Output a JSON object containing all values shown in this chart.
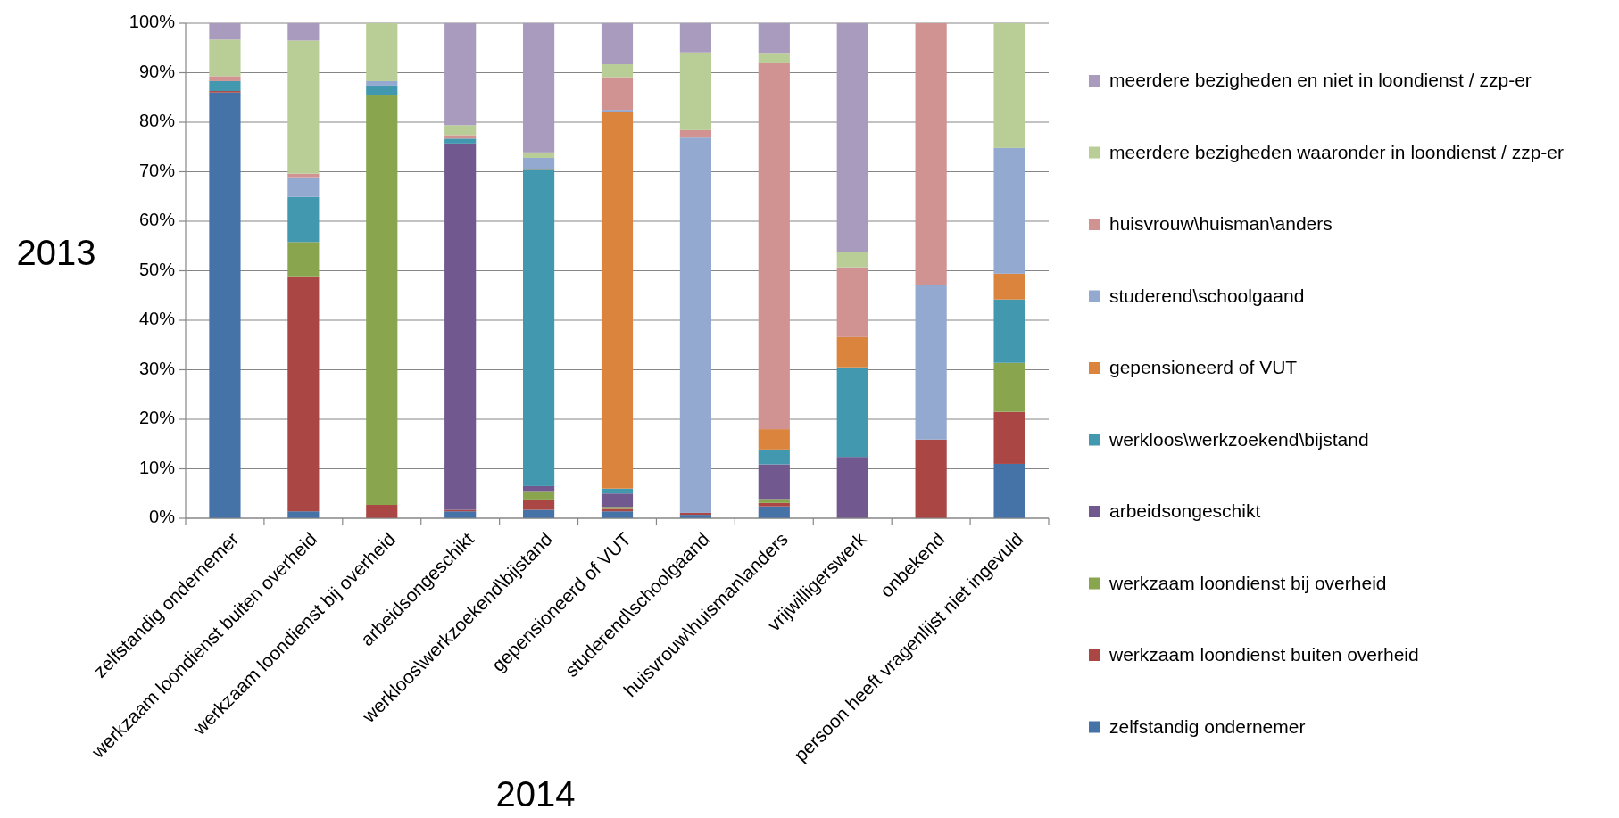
{
  "chart_data": {
    "type": "bar",
    "stacked": true,
    "ylabel": "2013",
    "xlabel": "2014",
    "categories": [
      "zelfstandig ondernemer",
      "werkzaam loondienst buiten overheid",
      "werkzaam loondienst bij overheid",
      "arbeidsongeschikt",
      "werkloos\\werkzoekend\\bijstand",
      "gepensioneerd of VUT",
      "studerend\\schoolgaand",
      "huisvrouw\\huisman\\anders",
      "vrijwilligerswerk",
      "onbekend",
      "persoon heeft vragenlijst niet ingevuld"
    ],
    "series": [
      {
        "name": "zelfstandig ondernemer",
        "color": "#4572a7",
        "values": [
          86.0,
          1.4,
          0,
          1.4,
          1.7,
          1.4,
          0.7,
          2.4,
          0,
          0,
          11.0
        ]
      },
      {
        "name": "werkzaam loondienst buiten overheid",
        "color": "#aa4643",
        "values": [
          0.3,
          47.5,
          2.7,
          0.3,
          2.1,
          0.5,
          0.4,
          0.7,
          0,
          15.9,
          10.5
        ]
      },
      {
        "name": "werkzaam loondienst bij overheid",
        "color": "#89a54e",
        "values": [
          0,
          6.9,
          82.7,
          0,
          1.7,
          0.4,
          0,
          0.8,
          0,
          0,
          9.9
        ]
      },
      {
        "name": "arbeidsongeschikt",
        "color": "#71588f",
        "values": [
          0,
          0,
          0,
          74.0,
          1.0,
          2.7,
          0,
          7.0,
          12.4,
          0,
          0
        ]
      },
      {
        "name": "werkloos\\werkzoekend\\bijstand",
        "color": "#4198af",
        "values": [
          2.0,
          9.1,
          2.0,
          1.0,
          63.9,
          1.0,
          0,
          3.0,
          18.1,
          0,
          12.8
        ]
      },
      {
        "name": "gepensioneerd of VUT",
        "color": "#db843d",
        "values": [
          0,
          0,
          0,
          0,
          0.2,
          76.0,
          0,
          4.1,
          6.1,
          0,
          5.2
        ]
      },
      {
        "name": "studerend\\schoolgaand",
        "color": "#93a9cf",
        "values": [
          0,
          4.0,
          0.9,
          0,
          2.2,
          0.5,
          75.8,
          0,
          0,
          31.3,
          25.4
        ]
      },
      {
        "name": "huisvrouw\\huisman\\anders",
        "color": "#d19392",
        "values": [
          1.0,
          0.7,
          0,
          0.7,
          0,
          6.6,
          1.5,
          73.9,
          14.1,
          52.8,
          0
        ]
      },
      {
        "name": "meerdere bezigheden waaronder in loondienst / zzp-er",
        "color": "#b9cd96",
        "values": [
          7.4,
          26.9,
          11.7,
          2.0,
          1.1,
          2.6,
          15.7,
          2.1,
          3.0,
          0,
          25.2
        ]
      },
      {
        "name": "meerdere bezigheden en niet in loondienst / zzp-er",
        "color": "#a99bbd",
        "values": [
          3.3,
          3.5,
          0,
          20.6,
          26.1,
          8.3,
          5.9,
          6.0,
          46.3,
          0,
          0
        ]
      }
    ],
    "ylim": [
      0,
      100
    ],
    "yticks": [
      {
        "value": 0,
        "label": "0%"
      },
      {
        "value": 10,
        "label": "10%"
      },
      {
        "value": 20,
        "label": "20%"
      },
      {
        "value": 30,
        "label": "30%"
      },
      {
        "value": 40,
        "label": "40%"
      },
      {
        "value": 50,
        "label": "50%"
      },
      {
        "value": 60,
        "label": "60%"
      },
      {
        "value": 70,
        "label": "70%"
      },
      {
        "value": 80,
        "label": "80%"
      },
      {
        "value": 90,
        "label": "90%"
      },
      {
        "value": 100,
        "label": "100%"
      }
    ],
    "grid": "y",
    "legend": "right"
  }
}
